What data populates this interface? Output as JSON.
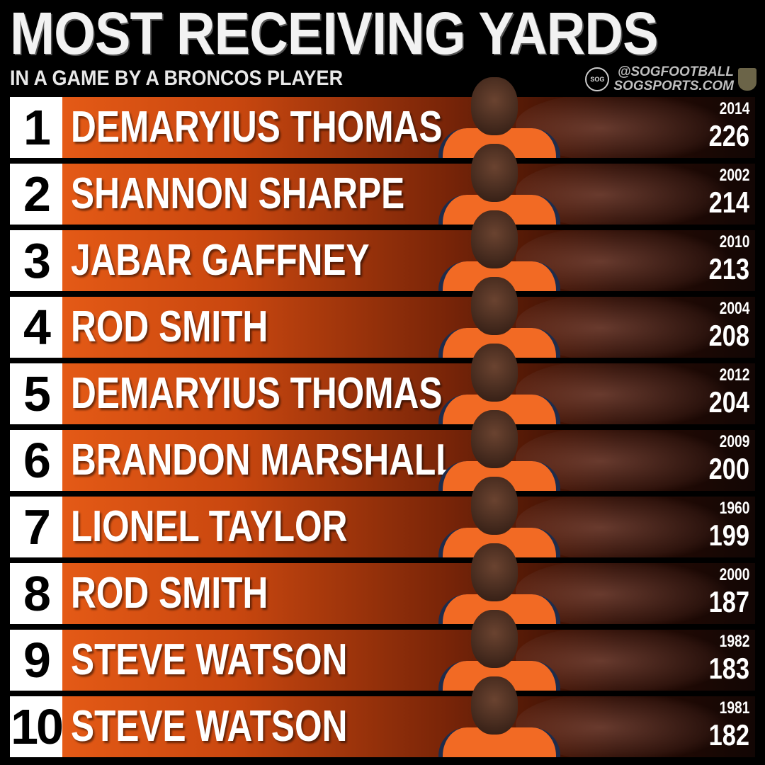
{
  "header": {
    "title": "MOST RECEIVING YARDS",
    "subtitle": "IN A GAME BY A BRONCOS PLAYER",
    "handle": "@SOGFOOTBALL",
    "site": "SOGSPORTS.COM",
    "logo_text": "SOG"
  },
  "colors": {
    "bar_start": "#e45a16",
    "bar_end": "#120604",
    "rank_bg": "#ffffff",
    "background": "#000000"
  },
  "rows": [
    {
      "rank": "1",
      "name": "DEMARYIUS THOMAS",
      "year": "2014",
      "yards": "226"
    },
    {
      "rank": "2",
      "name": "SHANNON SHARPE",
      "year": "2002",
      "yards": "214"
    },
    {
      "rank": "3",
      "name": "JABAR GAFFNEY",
      "year": "2010",
      "yards": "213"
    },
    {
      "rank": "4",
      "name": "ROD SMITH",
      "year": "2004",
      "yards": "208"
    },
    {
      "rank": "5",
      "name": "DEMARYIUS THOMAS",
      "year": "2012",
      "yards": "204"
    },
    {
      "rank": "6",
      "name": "BRANDON MARSHALL",
      "year": "2009",
      "yards": "200"
    },
    {
      "rank": "7",
      "name": "LIONEL TAYLOR",
      "year": "1960",
      "yards": "199"
    },
    {
      "rank": "8",
      "name": "ROD SMITH",
      "year": "2000",
      "yards": "187"
    },
    {
      "rank": "9",
      "name": "STEVE WATSON",
      "year": "1982",
      "yards": "183"
    },
    {
      "rank": "10",
      "name": "STEVE WATSON",
      "year": "1981",
      "yards": "182"
    }
  ]
}
